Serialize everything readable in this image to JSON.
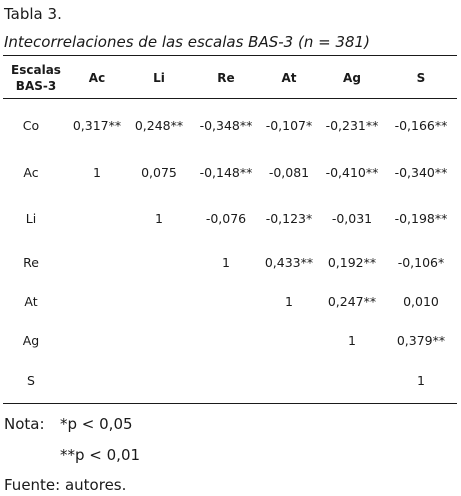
{
  "caption": {
    "label": "Tabla 3.",
    "title": "Intecorrelaciones de las escalas BAS-3 (n = 381)"
  },
  "table": {
    "first_header": "Escalas\nBAS-3",
    "columns": [
      "Ac",
      "Li",
      "Re",
      "At",
      "Ag",
      "S"
    ],
    "rows": [
      {
        "label": "Co",
        "cells": [
          "0,317**",
          "0,248**",
          "-0,348**",
          "-0,107*",
          "-0,231**",
          "-0,166**"
        ]
      },
      {
        "label": "Ac",
        "cells": [
          "1",
          "0,075",
          "-0,148**",
          "-0,081",
          "-0,410**",
          "-0,340**"
        ]
      },
      {
        "label": "Li",
        "cells": [
          "",
          "1",
          "-0,076",
          "-0,123*",
          "-0,031",
          "-0,198**"
        ]
      },
      {
        "label": "Re",
        "cells": [
          "",
          "",
          "1",
          "0,433**",
          "0,192**",
          "-0,106*"
        ]
      },
      {
        "label": "At",
        "cells": [
          "",
          "",
          "",
          "1",
          "0,247**",
          "0,010"
        ]
      },
      {
        "label": "Ag",
        "cells": [
          "",
          "",
          "",
          "",
          "1",
          "0,379**"
        ]
      },
      {
        "label": "S",
        "cells": [
          "",
          "",
          "",
          "",
          "",
          "1"
        ]
      }
    ]
  },
  "footer": {
    "nota_label": "Nota:",
    "note_1": "*p < 0,05",
    "note_2": "**p < 0,01",
    "source": "Fuente: autores."
  }
}
